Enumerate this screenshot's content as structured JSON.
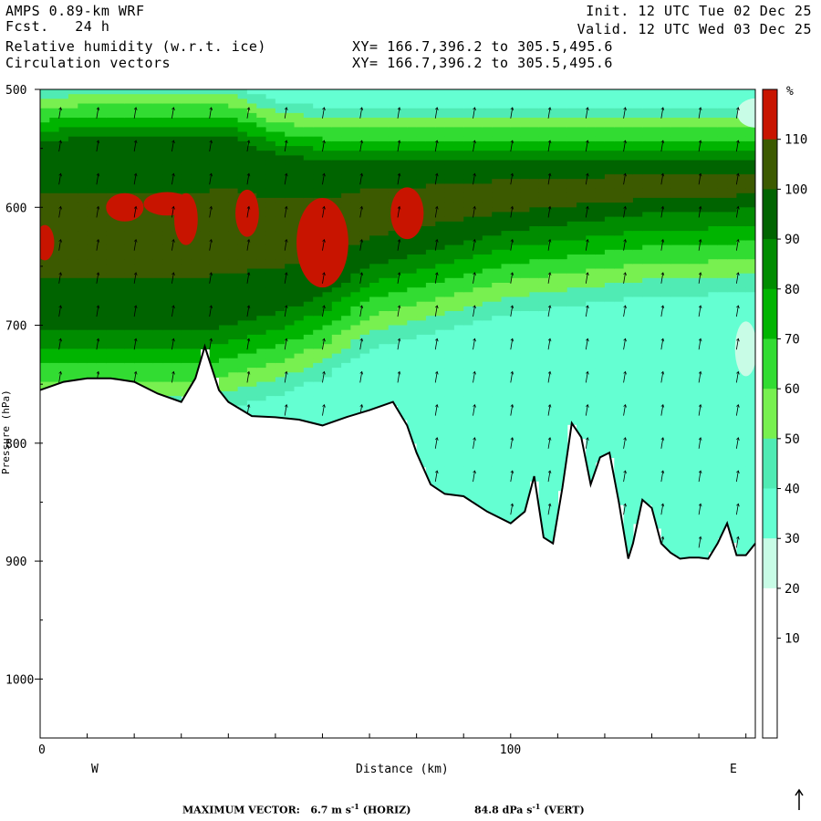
{
  "header": {
    "model": "AMPS 0.89-km WRF",
    "fcst_label": "Fcst.",
    "fcst_value": "24 h",
    "field1": "Relative humidity (w.r.t. ice)",
    "field2": "Circulation vectors",
    "init": "Init. 12 UTC Tue 02 Dec 25",
    "valid": "Valid. 12 UTC Wed 03 Dec 25",
    "xy1": "XY= 166.7,396.2 to 305.5,495.6",
    "xy2": "XY= 166.7,396.2 to 305.5,495.6"
  },
  "chart_data": {
    "type": "heatmap",
    "xlabel": "Distance (km)",
    "ylabel": "Pressure (hPa)",
    "xlim": [
      0,
      152
    ],
    "ylim": [
      1050,
      500
    ],
    "x_ticks": [
      0,
      100
    ],
    "y_ticks": [
      500,
      600,
      700,
      800,
      900,
      1000
    ],
    "x_end_labels": {
      "left": "W",
      "right": "E"
    },
    "colorbar": {
      "unit": "%",
      "levels": [
        10,
        20,
        30,
        40,
        50,
        60,
        70,
        80,
        90,
        100,
        110
      ],
      "colors": [
        "#ffffff",
        "#ffffff",
        "#ffffff",
        "#c8fce6",
        "#64ffd2",
        "#50ebb4",
        "#78f050",
        "#32dc32",
        "#00b400",
        "#008c00",
        "#006400",
        "#3c5a00",
        "#c81400"
      ]
    },
    "terrain_profile": {
      "x": [
        0,
        5,
        10,
        15,
        20,
        25,
        30,
        33,
        35,
        38,
        40,
        45,
        50,
        55,
        60,
        65,
        70,
        75,
        78,
        80,
        83,
        86,
        90,
        95,
        100,
        103,
        105,
        107,
        109,
        111,
        113,
        115,
        117,
        119,
        121,
        123,
        125,
        126,
        128,
        130,
        132,
        134,
        136,
        138,
        140,
        142,
        144,
        146,
        148,
        150,
        152
      ],
      "y": [
        755,
        748,
        745,
        745,
        748,
        758,
        765,
        745,
        718,
        755,
        765,
        777,
        778,
        780,
        785,
        778,
        772,
        765,
        785,
        808,
        835,
        843,
        845,
        858,
        868,
        858,
        828,
        880,
        885,
        838,
        783,
        795,
        835,
        812,
        808,
        850,
        898,
        885,
        848,
        855,
        885,
        893,
        898,
        897,
        897,
        898,
        885,
        868,
        895,
        895,
        885
      ]
    },
    "rh_features": [
      {
        "value": ">110",
        "location": "near 600 hPa, 15-42 km"
      },
      {
        "value": ">110",
        "location": "620-665 hPa, 53-67 km"
      },
      {
        "value": ">110",
        "location": "near 610 hPa, 75-81 km"
      },
      {
        "value": "100-110",
        "location": "570-720 hPa west of 90 km"
      }
    ],
    "max_vector": {
      "label": "MAXIMUM VECTOR:",
      "horiz_value": "6.7",
      "horiz_unit": "m s",
      "horiz_exp": "-1",
      "horiz_tag": "(HORIZ)",
      "vert_value": "84.8",
      "vert_unit": "dPa s",
      "vert_exp": "-1",
      "vert_tag": "(VERT)"
    }
  }
}
